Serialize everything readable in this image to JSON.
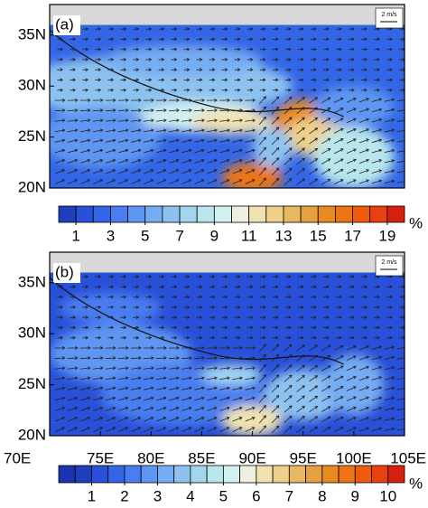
{
  "chart_data": [
    {
      "type": "map",
      "label": "(a)",
      "reference_vector": "2 m/s",
      "xlim": [
        70,
        105
      ],
      "ylim": [
        20,
        38
      ],
      "yticks": [
        {
          "value": 20,
          "label": "20N"
        },
        {
          "value": 25,
          "label": "25N"
        },
        {
          "value": 30,
          "label": "30N"
        },
        {
          "value": 35,
          "label": "35N"
        }
      ],
      "colorbar": {
        "unit": "%",
        "levels": [
          1,
          2,
          3,
          4,
          5,
          6,
          7,
          8,
          9,
          10,
          11,
          12,
          13,
          14,
          15,
          16,
          17,
          18,
          19
        ],
        "colors": [
          "#1f3fbf",
          "#2850d8",
          "#3366e6",
          "#4a7ef0",
          "#5f96f2",
          "#76acf2",
          "#8dc2f0",
          "#a3d6ee",
          "#b8e6ec",
          "#d2f0ee",
          "#efefdf",
          "#f0e2b0",
          "#eed08a",
          "#e8b860",
          "#e6a040",
          "#e88a20",
          "#ec7414",
          "#ee5a10",
          "#e84010",
          "#d82010"
        ],
        "ticks": [
          1,
          3,
          5,
          7,
          9,
          11,
          13,
          15,
          17,
          19
        ]
      }
    },
    {
      "type": "map",
      "label": "(b)",
      "reference_vector": "2 m/s",
      "xlim": [
        70,
        105
      ],
      "ylim": [
        20,
        38
      ],
      "xticks": [
        {
          "value": 70,
          "label": "70E"
        },
        {
          "value": 75,
          "label": "75E"
        },
        {
          "value": 80,
          "label": "80E"
        },
        {
          "value": 85,
          "label": "85E"
        },
        {
          "value": 90,
          "label": "90E"
        },
        {
          "value": 95,
          "label": "95E"
        },
        {
          "value": 100,
          "label": "100E"
        },
        {
          "value": 105,
          "label": "105E"
        }
      ],
      "yticks": [
        {
          "value": 20,
          "label": "20N"
        },
        {
          "value": 25,
          "label": "25N"
        },
        {
          "value": 30,
          "label": "30N"
        },
        {
          "value": 35,
          "label": "35N"
        }
      ],
      "colorbar": {
        "unit": "%",
        "levels": [
          0.5,
          1,
          1.5,
          2,
          2.5,
          3,
          3.5,
          4,
          4.5,
          5,
          5.5,
          6,
          6.5,
          7,
          7.5,
          8,
          8.5,
          9,
          9.5,
          10
        ],
        "colors": [
          "#1a34b0",
          "#1f3fbf",
          "#2850d8",
          "#3366e6",
          "#4a7ef0",
          "#5f96f2",
          "#76acf2",
          "#8dc2f0",
          "#a3d6ee",
          "#b8e6ec",
          "#d2f0ee",
          "#efefdf",
          "#f0e2b0",
          "#eed08a",
          "#e8b860",
          "#e6a040",
          "#e88a20",
          "#ec7414",
          "#ee5a10",
          "#e84010",
          "#d82010"
        ],
        "ticks": [
          1,
          2,
          3,
          4,
          5,
          6,
          7,
          8,
          9,
          10
        ]
      }
    }
  ]
}
